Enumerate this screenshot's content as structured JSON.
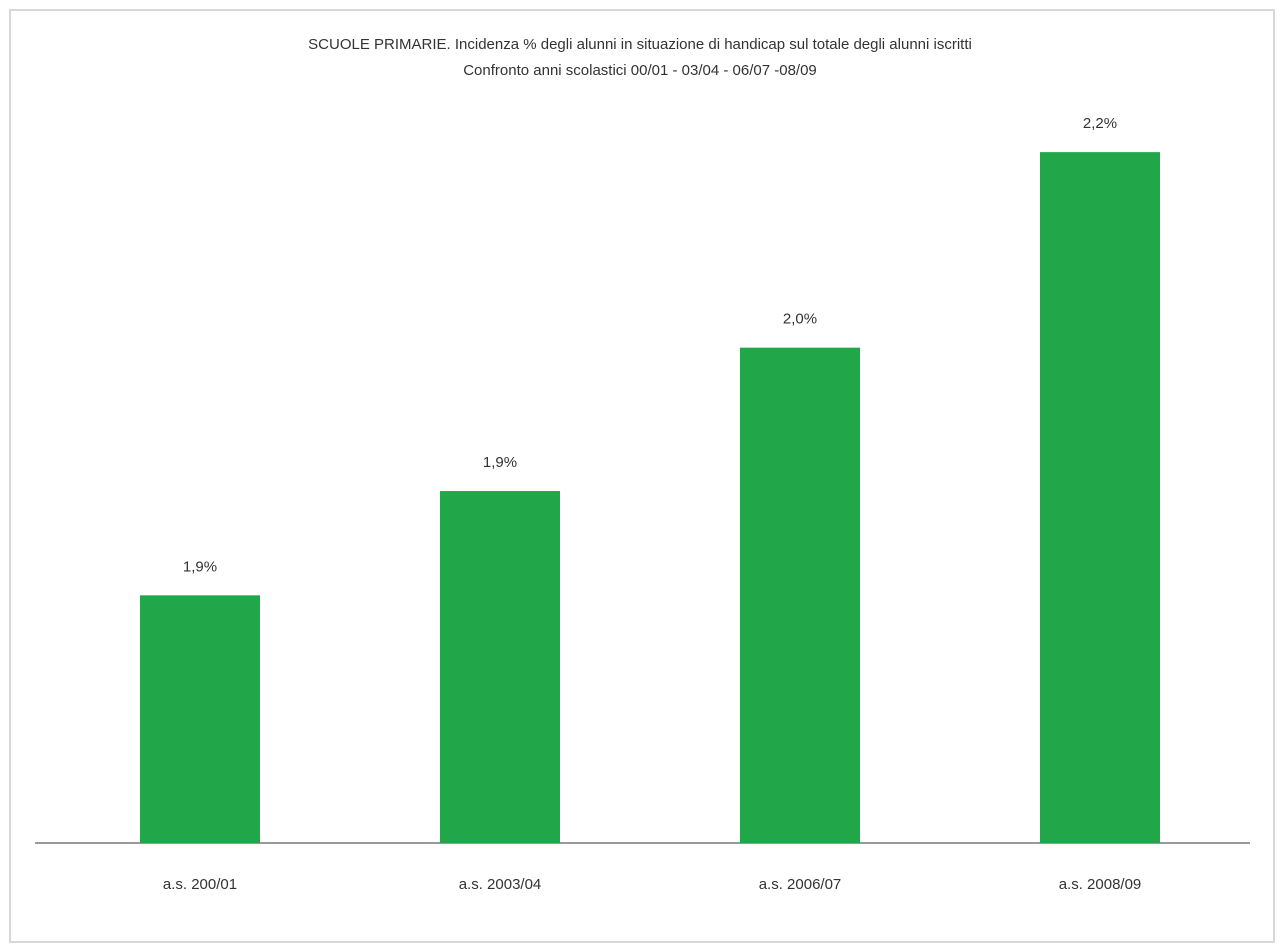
{
  "chart_data": {
    "type": "bar",
    "title": "SCUOLE  PRIMARIE. Incidenza % degli alunni in situazione di  handicap sul totale degli alunni iscritti",
    "subtitle": "Confronto anni scolastici  00/01 - 03/04 - 06/07 -08/09",
    "categories": [
      "a.s. 200/01",
      "a.s. 2003/04",
      "a.s. 2006/07",
      "a.s. 2008/09"
    ],
    "values": [
      1.86,
      1.94,
      2.05,
      2.2
    ],
    "value_labels": [
      "1,9%",
      "1,9%",
      "2,0%",
      "2,2%"
    ],
    "color": "#22a64a",
    "ylim": [
      1.67,
      2.24
    ]
  }
}
